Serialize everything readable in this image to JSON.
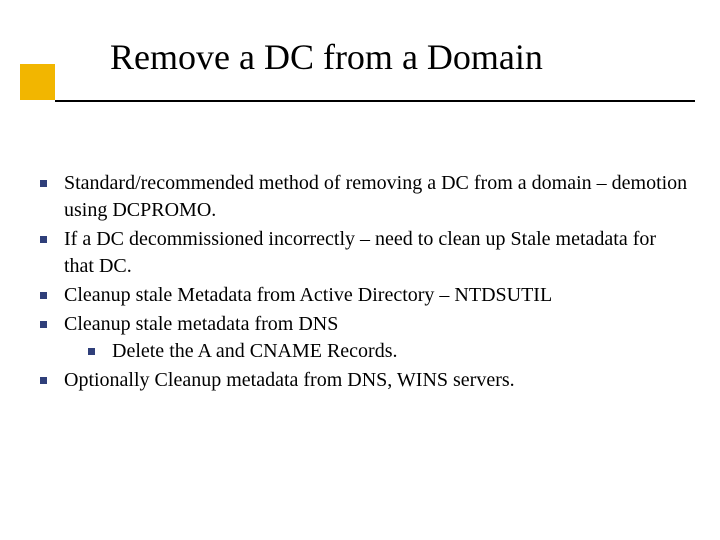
{
  "title": "Remove a DC from a Domain",
  "accent_color": "#f2b600",
  "bullet_color": "#2f3f7a",
  "background_color": "#ffffff",
  "title_fontsize": 36,
  "body_fontsize": 20,
  "bullets": {
    "b0": "Standard/recommended method of removing a DC from a domain – demotion using DCPROMO.",
    "b1": "If a DC decommissioned incorrectly – need to clean up Stale metadata for that DC.",
    "b2": "Cleanup stale Metadata from Active Directory – NTDSUTIL",
    "b3": "Cleanup stale metadata from DNS",
    "b3_0": "Delete the A and CNAME Records.",
    "b4": "Optionally Cleanup metadata from DNS, WINS servers."
  }
}
